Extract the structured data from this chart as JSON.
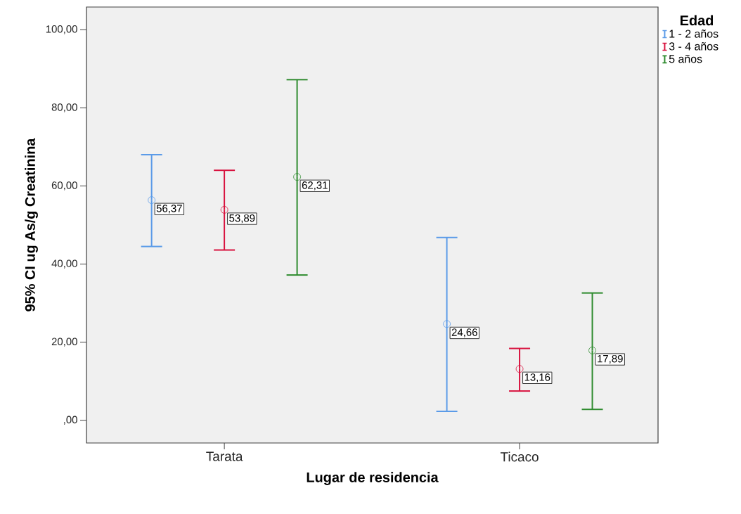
{
  "chart_data": {
    "type": "scatter",
    "xlabel": "Lugar de residencia",
    "ylabel": "95% CI ug As/g Creatinina",
    "legend_title": "Edad",
    "categories": [
      "Tarata",
      "Ticaco"
    ],
    "ylim": [
      -5.8,
      105.8
    ],
    "yticks": [
      {
        "value": 0,
        "label": ",00"
      },
      {
        "value": 20,
        "label": "20,00"
      },
      {
        "value": 40,
        "label": "40,00"
      },
      {
        "value": 60,
        "label": "60,00"
      },
      {
        "value": 80,
        "label": "80,00"
      },
      {
        "value": 100,
        "label": "100,00"
      }
    ],
    "marker": "circle",
    "legend": "top right",
    "grid": false,
    "series": [
      {
        "name": "1 - 2 años",
        "color": "#5b9be8",
        "values": [
          56.37,
          24.66
        ],
        "errors": [
          [
            44.5,
            68.0
          ],
          [
            2.3,
            46.8
          ]
        ],
        "value_labels": [
          "56,37",
          "24,66"
        ]
      },
      {
        "name": "3 - 4 años",
        "color": "#d8123e",
        "values": [
          53.89,
          13.16
        ],
        "errors": [
          [
            43.6,
            64.0
          ],
          [
            7.5,
            18.4
          ]
        ],
        "value_labels": [
          "53,89",
          "13,16"
        ]
      },
      {
        "name": "5 años",
        "color": "#2e8b2e",
        "values": [
          62.31,
          17.89
        ],
        "errors": [
          [
            37.2,
            87.2
          ],
          [
            2.8,
            32.6
          ]
        ],
        "value_labels": [
          "62,31",
          "17,89"
        ]
      }
    ]
  }
}
